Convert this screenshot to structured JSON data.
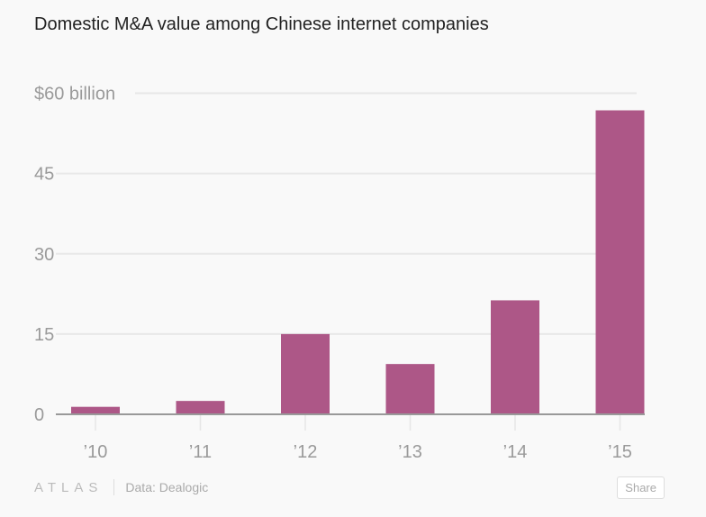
{
  "chart_data": {
    "type": "bar",
    "title": "Domestic M&A value among Chinese internet companies",
    "categories": [
      "’10",
      "’11",
      "’12",
      "’13",
      "’14",
      "’15"
    ],
    "values": [
      1.4,
      2.5,
      15.0,
      9.4,
      21.3,
      56.8
    ],
    "ylim": [
      0,
      60
    ],
    "yticks": [
      0,
      15,
      30,
      45,
      60
    ],
    "ytick_labels": [
      "0",
      "15",
      "30",
      "45",
      "$60 billion"
    ],
    "xlabel": "",
    "ylabel": "",
    "grid": true,
    "bar_color": "#ad5787"
  },
  "footer": {
    "logo": "ATLAS",
    "source": "Data: Dealogic",
    "share_label": "Share"
  }
}
